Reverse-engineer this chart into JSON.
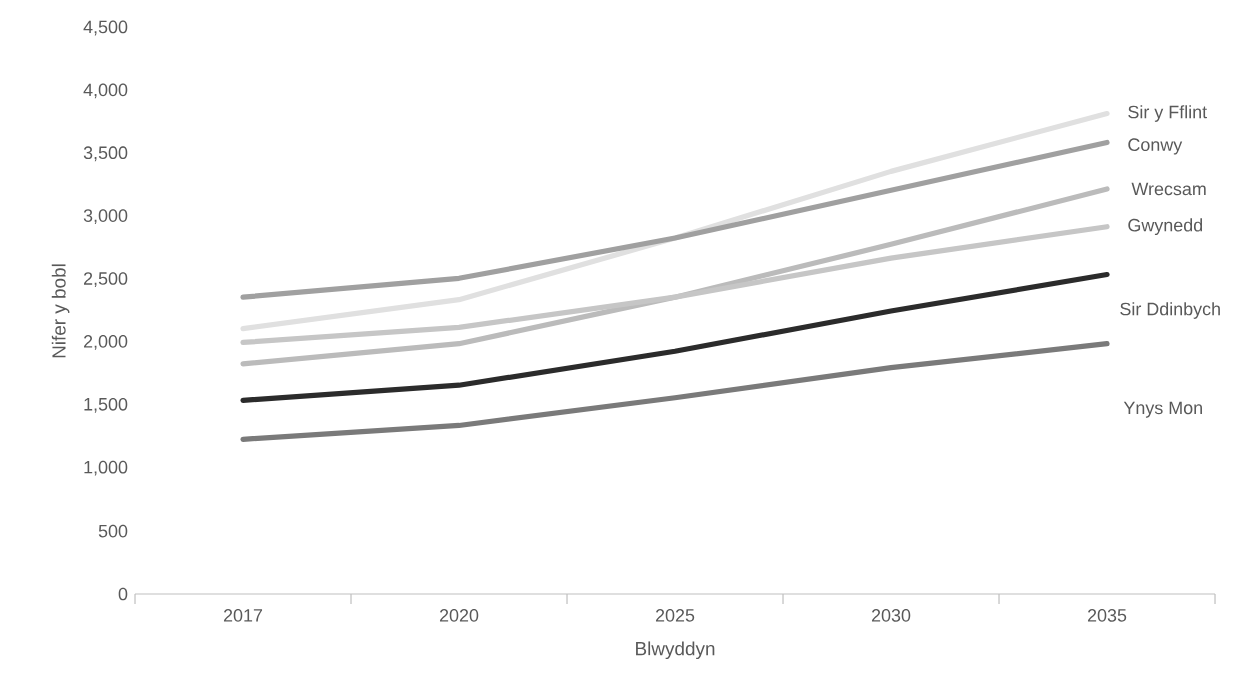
{
  "chart_data": {
    "type": "line",
    "xlabel": "Blwyddyn",
    "ylabel": "Nifer y bobl",
    "categories": [
      "2017",
      "2020",
      "2025",
      "2030",
      "2035"
    ],
    "ylim": [
      0,
      4500
    ],
    "yticks": [
      {
        "value": 0,
        "label": "0"
      },
      {
        "value": 500,
        "label": "500"
      },
      {
        "value": 1000,
        "label": "1,000"
      },
      {
        "value": 1500,
        "label": "1,500"
      },
      {
        "value": 2000,
        "label": "2,000"
      },
      {
        "value": 2500,
        "label": "2,500"
      },
      {
        "value": 3000,
        "label": "3,000"
      },
      {
        "value": 3500,
        "label": "3,500"
      },
      {
        "value": 4000,
        "label": "4,000"
      },
      {
        "value": 4500,
        "label": "4,500"
      }
    ],
    "grid": false,
    "legend": false,
    "marker": "none",
    "line_style": "solid",
    "series": [
      {
        "name": "Sir y Fflint",
        "color": "#e0e0e0",
        "values": [
          2110,
          2340,
          2830,
          3360,
          3820
        ]
      },
      {
        "name": "Conwy",
        "color": "#a0a0a0",
        "values": [
          2360,
          2510,
          2830,
          3210,
          3590
        ]
      },
      {
        "name": "Wrecsam",
        "color": "#bbbbbb",
        "values": [
          1830,
          1990,
          2360,
          2780,
          3220
        ]
      },
      {
        "name": "Gwynedd",
        "color": "#c6c6c6",
        "values": [
          2000,
          2120,
          2360,
          2670,
          2920
        ]
      },
      {
        "name": "Sir Ddinbych",
        "color": "#2b2b2b",
        "values": [
          1540,
          1660,
          1930,
          2250,
          2540
        ]
      },
      {
        "name": "Ynys Mon",
        "color": "#7a7a7a",
        "values": [
          1230,
          1340,
          1560,
          1800,
          1990
        ]
      }
    ]
  }
}
